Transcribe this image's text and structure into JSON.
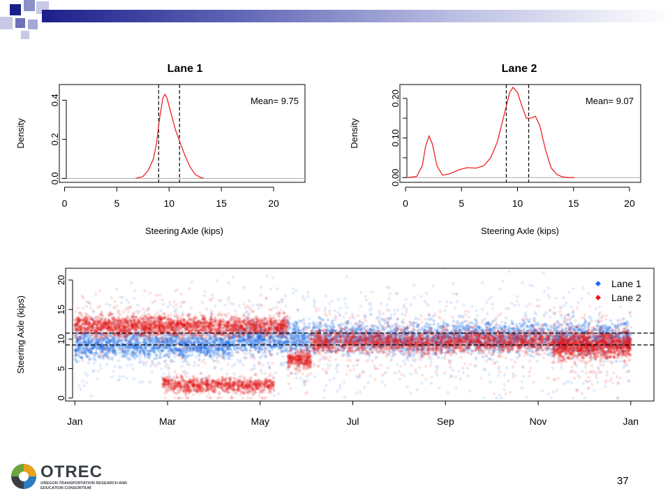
{
  "slide": {
    "page_number": "37",
    "logo": {
      "name": "OTREC",
      "subtitle": "Oregon Transportation Research and Education Consortium"
    }
  },
  "colors": {
    "lane1": "#1c6ee8",
    "lane2": "#e51818",
    "density_line": "#ee2222",
    "bar_dark": "#1b1f8a"
  },
  "chart_data": [
    {
      "type": "line",
      "title": "Lane 1",
      "xlabel": "Steering Axle (kips)",
      "ylabel": "Density",
      "xlim": [
        -0.5,
        23
      ],
      "ylim": [
        -0.02,
        0.48
      ],
      "xticks": [
        0,
        5,
        10,
        15,
        20
      ],
      "yticks": [
        0.0,
        0.2,
        0.4
      ],
      "ytick_labels": [
        "0.0",
        "0.2",
        "0.4"
      ],
      "annotation": "Mean= 9.75",
      "vlines": [
        9.0,
        11.0
      ],
      "hline": 0,
      "series": [
        {
          "x": [
            6.8,
            7.5,
            8.0,
            8.5,
            8.8,
            9.1,
            9.4,
            9.6,
            9.8,
            10.0,
            10.3,
            10.6,
            11.0,
            11.5,
            12.0,
            12.5,
            13.0,
            13.3
          ],
          "y": [
            0.0,
            0.01,
            0.04,
            0.1,
            0.18,
            0.31,
            0.41,
            0.43,
            0.41,
            0.37,
            0.31,
            0.25,
            0.19,
            0.12,
            0.06,
            0.02,
            0.005,
            0.0
          ]
        }
      ]
    },
    {
      "type": "line",
      "title": "Lane 2",
      "xlabel": "Steering Axle (kips)",
      "ylabel": "Density",
      "xlim": [
        -0.5,
        21
      ],
      "ylim": [
        -0.012,
        0.235
      ],
      "xticks": [
        0,
        5,
        10,
        15,
        20
      ],
      "yticks": [
        0.0,
        0.1,
        0.2
      ],
      "ytick_labels": [
        "0.00",
        "0.10",
        "0.20"
      ],
      "extra_yticks": [
        0.05,
        0.15
      ],
      "annotation": "Mean= 9.07",
      "vlines": [
        9.0,
        11.0
      ],
      "hline": 0,
      "series": [
        {
          "x": [
            0.2,
            1.0,
            1.5,
            1.8,
            2.1,
            2.4,
            2.8,
            3.3,
            4.0,
            4.8,
            5.5,
            6.3,
            7.0,
            7.6,
            8.2,
            8.6,
            9.0,
            9.3,
            9.6,
            10.0,
            10.4,
            10.8,
            11.2,
            11.6,
            12.0,
            12.5,
            13.0,
            13.5,
            14.0,
            14.5,
            15.1
          ],
          "y": [
            0.0,
            0.003,
            0.03,
            0.08,
            0.105,
            0.085,
            0.03,
            0.006,
            0.01,
            0.02,
            0.025,
            0.024,
            0.03,
            0.05,
            0.09,
            0.135,
            0.18,
            0.215,
            0.228,
            0.215,
            0.18,
            0.15,
            0.15,
            0.155,
            0.13,
            0.07,
            0.025,
            0.008,
            0.002,
            0.0,
            0.0
          ]
        }
      ]
    },
    {
      "type": "scatter",
      "xlabel": "",
      "ylabel": "Steering Axle (kips)",
      "xlim": [
        -0.2,
        12.5
      ],
      "ylim": [
        -0.5,
        22
      ],
      "xtick_labels": [
        "Jan",
        "Mar",
        "May",
        "Jul",
        "Sep",
        "Nov",
        "Jan"
      ],
      "xtick_positions": [
        0,
        2,
        4,
        6,
        8,
        10,
        12
      ],
      "yticks": [
        0,
        5,
        10,
        15,
        20
      ],
      "hlines": [
        9,
        11
      ],
      "legend": {
        "position": "top-right",
        "entries": [
          "Lane 1",
          "Lane 2"
        ]
      },
      "series": [
        {
          "name": "Lane 1",
          "color": "#1c6ee8",
          "bands": [
            {
              "x0": 0.0,
              "x1": 3.4,
              "center": 9.0,
              "spread": 1.8,
              "density": 7
            },
            {
              "x0": 3.4,
              "x1": 4.6,
              "center": 10.0,
              "spread": 2.0,
              "density": 7
            },
            {
              "x0": 4.6,
              "x1": 12.0,
              "center": 10.3,
              "spread": 2.2,
              "density": 6
            }
          ]
        },
        {
          "name": "Lane 2",
          "color": "#e51818",
          "bands": [
            {
              "x0": 0.0,
              "x1": 4.6,
              "center": 12.2,
              "spread": 1.4,
              "density": 7
            },
            {
              "x0": 4.6,
              "x1": 5.1,
              "center": 6.5,
              "spread": 1.2,
              "density": 8
            },
            {
              "x0": 5.1,
              "x1": 12.0,
              "center": 9.6,
              "spread": 1.5,
              "density": 6
            },
            {
              "x0": 1.9,
              "x1": 4.3,
              "center": 2.2,
              "spread": 1.0,
              "density": 5
            },
            {
              "x0": 10.3,
              "x1": 12.0,
              "center": 8.5,
              "spread": 1.6,
              "density": 6
            }
          ]
        }
      ]
    }
  ]
}
